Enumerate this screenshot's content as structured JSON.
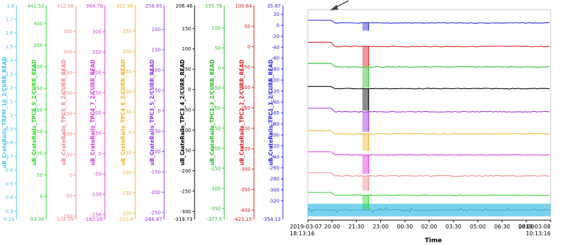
{
  "chart_data": {
    "type": "line",
    "xlabel": "Time",
    "x_ticks": [
      "2019-03-07\n18:13:16",
      "20:00",
      "21:30",
      "23:00",
      "00:30",
      "02:00",
      "03:30",
      "05:00",
      "06:30",
      "08:00",
      "2019-03-08\n10:13:16"
    ],
    "axes": [
      {
        "label": "uB_CrateRails_TRPM_10_2/CURR_READ",
        "color": "#4fc3e8",
        "range": [
          0.24,
          1.8
        ],
        "top": "1.8",
        "bottom": "0.24",
        "ticks": [
          "1.7",
          "1.6",
          "1.5",
          "1.4",
          "1.3",
          "1.2",
          "1.1",
          "1",
          "0.9",
          "0.8",
          "0.7",
          "0.6",
          "0.5",
          "0.4",
          "0.3"
        ]
      },
      {
        "label": "uB_CrateRails_TPC5_9_2/CURR_READ",
        "color": "#2dd72d",
        "range": [
          -53.36,
          441.52
        ],
        "top": "441.52",
        "bottom": "-53.36",
        "ticks": [
          "400",
          "350",
          "300",
          "250",
          "200",
          "150",
          "100",
          "50",
          "0"
        ]
      },
      {
        "label": "uB_CrateRails_TPC5_8_2/CURR_READ",
        "color": "#f08a8a",
        "range": [
          -108.09,
          412.58
        ],
        "top": "412.58",
        "bottom": "-108.09",
        "ticks": [
          "350",
          "300",
          "250",
          "200",
          "150",
          "100",
          "50",
          "0",
          "-50",
          "-100"
        ]
      },
      {
        "label": "uB_CrateRails_TPC4_7_2/CURR_READ",
        "color": "#e033e0",
        "range": [
          -162.26,
          364.78
        ],
        "top": "364.78",
        "bottom": "-162.26",
        "ticks": [
          "300",
          "250",
          "200",
          "150",
          "100",
          "50",
          "0",
          "-50",
          "-100",
          "-150"
        ]
      },
      {
        "label": "uB_CrateRails_TPC4_6_2/CURR_READ",
        "color": "#f0b429",
        "range": [
          -215.6,
          312.99
        ],
        "top": "312.99",
        "bottom": "-215.6",
        "ticks": [
          "250",
          "200",
          "150",
          "100",
          "50",
          "0",
          "-50",
          "-100",
          "-150",
          "-200"
        ]
      },
      {
        "label": "uB_CrateRails_TPC3_5_2/CURR_READ",
        "color": "#9b30e0",
        "range": [
          -266.87,
          258.85
        ],
        "top": "258.85",
        "bottom": "-266.87",
        "ticks": [
          "200",
          "150",
          "100",
          "50",
          "0",
          "-50",
          "-100",
          "-150",
          "-200",
          "-250"
        ]
      },
      {
        "label": "uB_CrateRails_TPC3_4_2/CURR_READ",
        "color": "#000000",
        "range": [
          -319.73,
          206.46
        ],
        "top": "206.46",
        "bottom": "-319.73",
        "ticks": [
          "150",
          "100",
          "50",
          "0",
          "-50",
          "-100",
          "-150",
          "-200",
          "-250",
          "-300"
        ]
      },
      {
        "label": "uB_CrateRails_TPC2_3_2/CURR_READ",
        "color": "#2dbb2d",
        "range": [
          -377.5,
          155.78
        ],
        "top": "155.78",
        "bottom": "-377.5",
        "ticks": [
          "100",
          "50",
          "0",
          "-50",
          "-100",
          "-150",
          "-200",
          "-250",
          "-300",
          "-350"
        ]
      },
      {
        "label": "uB_CrateRails_TPC2_2_2/CURR_READ",
        "color": "#d92020",
        "range": [
          -423.15,
          100.64
        ],
        "top": "100.64",
        "bottom": "-423.15",
        "ticks": [
          "50",
          "0",
          "-50",
          "-100",
          "-150",
          "-200",
          "-250",
          "-300",
          "-350",
          "-400"
        ]
      },
      {
        "label": "uB_CrateRails_TPC1_1_2/CURR_READ",
        "color": "#2a2ae0",
        "range": [
          -354.13,
          35.87
        ],
        "top": "35.87",
        "bottom": "-354.13",
        "ticks": [
          "20",
          "0",
          "-20",
          "-40",
          "-60",
          "-80",
          "-100",
          "-120",
          "-140",
          "-160",
          "-180",
          "-200",
          "-220",
          "-240",
          "-260",
          "-280",
          "-300",
          "-320"
        ]
      }
    ],
    "series": [
      {
        "color": "#2a2ae0",
        "base": 0.05,
        "after": 0.063,
        "dip": 0.1
      },
      {
        "color": "#d92020",
        "base": 0.155,
        "after": 0.175,
        "dip": 0.27
      },
      {
        "color": "#2dbb2d",
        "base": 0.255,
        "after": 0.272,
        "dip": 0.37
      },
      {
        "color": "#000000",
        "base": 0.365,
        "after": 0.375,
        "dip": 0.48
      },
      {
        "color": "#9b30e0",
        "base": 0.468,
        "after": 0.485,
        "dip": 0.58
      },
      {
        "color": "#f0b429",
        "base": 0.575,
        "after": 0.59,
        "dip": 0.67
      },
      {
        "color": "#e033e0",
        "base": 0.675,
        "after": 0.69,
        "dip": 0.78
      },
      {
        "color": "#f08a8a",
        "base": 0.775,
        "after": 0.79,
        "dip": 0.86
      },
      {
        "color": "#2dd72d",
        "base": 0.868,
        "after": 0.882,
        "dip": 0.95
      }
    ],
    "band": {
      "color": "#4fc3e8",
      "top": 0.922,
      "bottom": 0.982
    }
  }
}
